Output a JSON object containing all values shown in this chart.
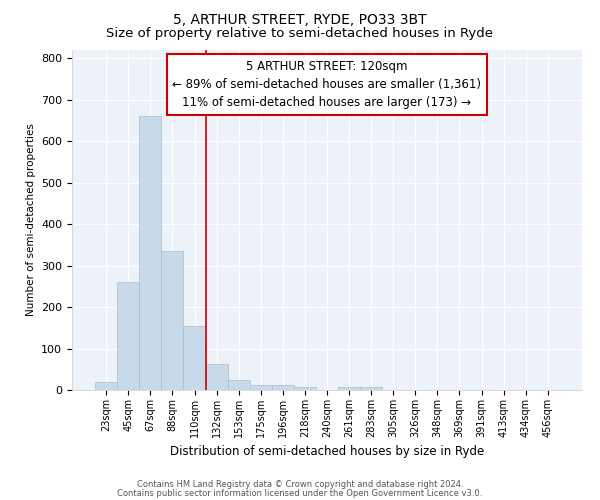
{
  "title": "5, ARTHUR STREET, RYDE, PO33 3BT",
  "subtitle": "Size of property relative to semi-detached houses in Ryde",
  "xlabel": "Distribution of semi-detached houses by size in Ryde",
  "ylabel": "Number of semi-detached properties",
  "bar_labels": [
    "23sqm",
    "45sqm",
    "67sqm",
    "88sqm",
    "110sqm",
    "132sqm",
    "153sqm",
    "175sqm",
    "196sqm",
    "218sqm",
    "240sqm",
    "261sqm",
    "283sqm",
    "305sqm",
    "326sqm",
    "348sqm",
    "369sqm",
    "391sqm",
    "413sqm",
    "434sqm",
    "456sqm"
  ],
  "bar_values": [
    20,
    260,
    660,
    335,
    155,
    63,
    25,
    12,
    12,
    7,
    0,
    8,
    8,
    0,
    0,
    0,
    0,
    0,
    0,
    0,
    0
  ],
  "bar_color": "#c8daea",
  "bar_edge_color": "#aabccc",
  "red_line_x": 4.5,
  "annotation_title": "5 ARTHUR STREET: 120sqm",
  "annotation_line1": "← 89% of semi-detached houses are smaller (1,361)",
  "annotation_line2": "11% of semi-detached houses are larger (173) →",
  "annotation_box_color": "#ffffff",
  "annotation_box_edge": "#cc0000",
  "red_line_color": "#cc0000",
  "ylim": [
    0,
    820
  ],
  "yticks": [
    0,
    100,
    200,
    300,
    400,
    500,
    600,
    700,
    800
  ],
  "footer1": "Contains HM Land Registry data © Crown copyright and database right 2024.",
  "footer2": "Contains public sector information licensed under the Open Government Licence v3.0.",
  "bg_color": "#ffffff",
  "plot_bg_color": "#edf2f9",
  "grid_color": "#ffffff",
  "title_fontsize": 10,
  "subtitle_fontsize": 9.5,
  "annotation_fontsize": 8.5
}
